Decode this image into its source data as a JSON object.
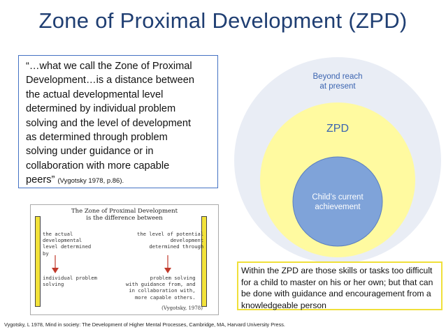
{
  "title": "Zone of Proximal Development (ZPD)",
  "quote": {
    "lines": [
      "“…what we call the Zone of Proximal",
      "Development…is a distance between",
      "the actual developmental level",
      "determined by individual problem",
      "solving and the level of development",
      "as determined through problem",
      "solving under guidance or in",
      "collaboration with more capable"
    ],
    "last_line": "peers”",
    "citation": "(Vygotsky 1978, p.86)."
  },
  "circles": {
    "outer_label": "Beyond reach\nat present",
    "middle_label": "ZPD",
    "inner_label": "Child’s current\nachievement",
    "colors": {
      "outer": "#e9edf5",
      "middle": "#fffaa0",
      "inner": "#7fa3d9"
    }
  },
  "inset": {
    "title_line1": "The Zone of Proximal Development",
    "title_line2": "is the difference between",
    "left_text": "the actual\ndevelopmental\nlevel determined\nby",
    "left_bottom": "individual problem\nsolving",
    "right_text": "the level of potential\ndevelopment\ndetermined through",
    "right_bottom": "problem solving\nwith guidance from, and\nin collaboration with,\nmore capable others.",
    "citation": "(Vygotsky, 1978)"
  },
  "zpd_note": "Within the ZPD are those skills or tasks too difficult for a child to master on his or her own; but that can be done with guidance and encouragement from a knowledgeable person",
  "footer": "Vygotsky, L 1978, Mind in society: The Development of Higher Mental Processes, Cambridge, MA, Harvard University Press."
}
